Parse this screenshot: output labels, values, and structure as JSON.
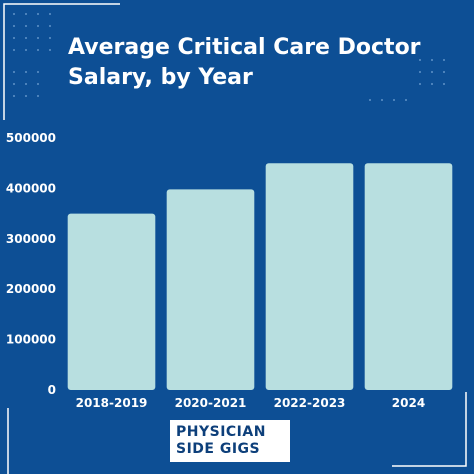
{
  "header": {
    "title_line1": "Average Critical Care Doctor",
    "title_line2": "Salary, by Year"
  },
  "brand": {
    "line1": "PHYSICIAN",
    "line2": "SIDE GIGS"
  },
  "colors": {
    "background": "#0d4f95",
    "bar": "#b8dfe0",
    "text": "#ffffff",
    "logo_text": "#0d3f7a"
  },
  "chart_data": {
    "type": "bar",
    "title": "Average Critical Care Doctor Salary, by Year",
    "xlabel": "",
    "ylabel": "",
    "categories": [
      "2018-2019",
      "2020-2021",
      "2022-2023",
      "2024"
    ],
    "values": [
      350000,
      398000,
      450000,
      450000
    ],
    "yticks": [
      "0",
      "100000",
      "200000",
      "300000",
      "400000",
      "500000"
    ],
    "ylim": [
      0,
      500000
    ],
    "grid": false,
    "legend": "none"
  }
}
